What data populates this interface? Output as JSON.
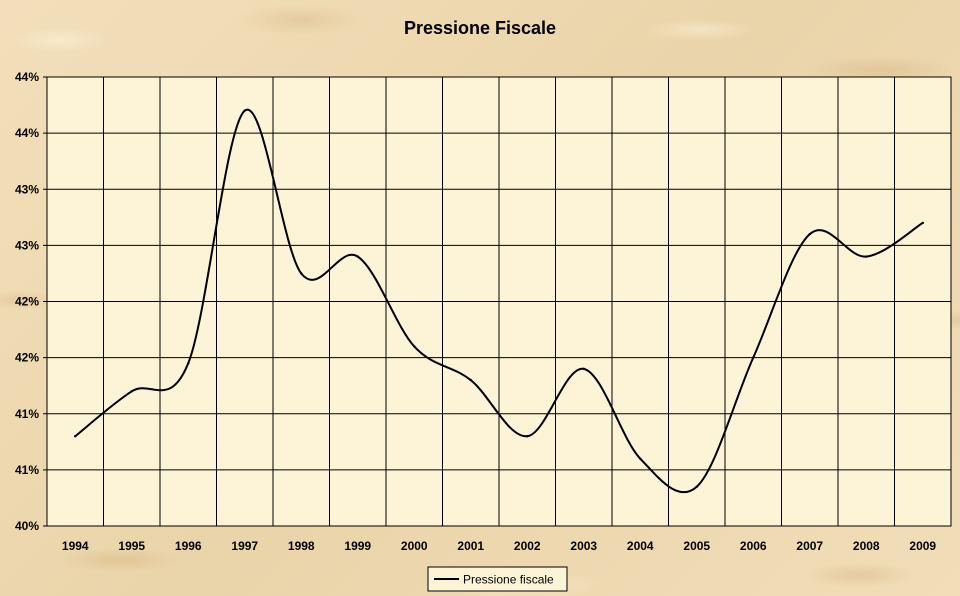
{
  "chart_data": {
    "type": "line",
    "title": "Pressione Fiscale",
    "xlabel": "",
    "ylabel": "",
    "categories": [
      "1994",
      "1995",
      "1996",
      "1997",
      "1998",
      "1999",
      "2000",
      "2001",
      "2002",
      "2003",
      "2004",
      "2005",
      "2006",
      "2007",
      "2008",
      "2009"
    ],
    "y_tick_labels": [
      "40%",
      "41%",
      "41%",
      "42%",
      "42%",
      "43%",
      "43%",
      "44%",
      "44%"
    ],
    "ylim": [
      40.0,
      44.0
    ],
    "grid": true,
    "legend_position": "bottom",
    "series": [
      {
        "name": "Pressione fiscale",
        "color": "#000000",
        "values": [
          40.8,
          41.2,
          41.45,
          43.7,
          42.25,
          42.4,
          41.6,
          41.3,
          40.8,
          41.4,
          40.6,
          40.35,
          41.5,
          42.6,
          42.4,
          42.7
        ]
      }
    ]
  }
}
